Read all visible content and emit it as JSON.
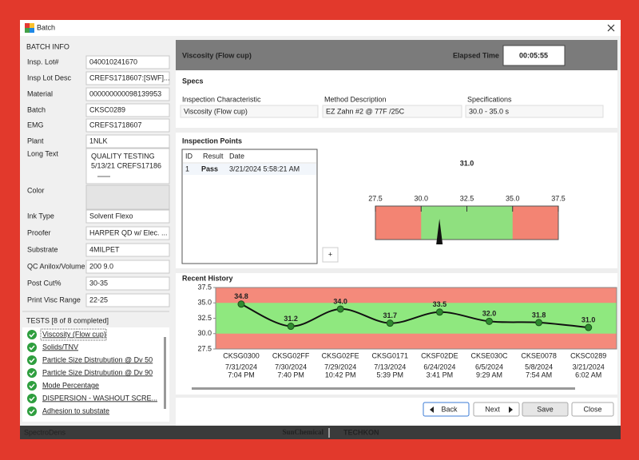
{
  "window": {
    "title": "Batch"
  },
  "batch_info": {
    "heading": "BATCH INFO",
    "fields": [
      {
        "label": "Insp. Lot#",
        "value": "040010241670"
      },
      {
        "label": "Insp Lot Desc",
        "value": "CREFS1718607:[SWF]..."
      },
      {
        "label": "Material",
        "value": "000000000098139953"
      },
      {
        "label": "Batch",
        "value": "CKSC0289"
      },
      {
        "label": "EMG",
        "value": "CREFS1718607"
      },
      {
        "label": "Plant",
        "value": "1NLK"
      },
      {
        "label": "Long Text",
        "value": [
          "QUALITY TESTING",
          "5/13/21 CREFS17186"
        ]
      },
      {
        "label": "Color"
      },
      {
        "label": "Ink Type",
        "value": "Solvent Flexo"
      },
      {
        "label": "Proofer",
        "value": "HARPER QD w/ Elec. ..."
      },
      {
        "label": "Substrate",
        "value": "4MILPET"
      },
      {
        "label": "QC Anilox/Volume",
        "value": "200 9.0"
      },
      {
        "label": "Post Cut%",
        "value": "30-35"
      },
      {
        "label": "Print Visc Range",
        "value": "22-25"
      }
    ]
  },
  "tests": {
    "heading": "TESTS [8 of 8 completed]",
    "items": [
      "Viscosity (Flow cup)",
      "Solids/TNV",
      "Particle Size Distrubution @ Dv 50",
      "Particle Size Distrubution @ Dv 90",
      "Mode Percentage",
      "DISPERSION - WASHOUT SCRE...",
      "Adhesion to substate"
    ]
  },
  "header": {
    "title": "Viscosity (Flow cup)",
    "elapsed_label": "Elapsed Time",
    "elapsed": "00:05:55"
  },
  "specs": {
    "heading": "Specs",
    "columns": [
      "Inspection Characteristic",
      "Method Description",
      "Specifications"
    ],
    "values": [
      "Viscosity (Flow cup)",
      "EZ Zahn #2 @ 77F /25C",
      "30.0 - 35.0 s"
    ]
  },
  "inspection_points": {
    "heading": "Inspection Points",
    "columns": [
      "ID",
      "Result",
      "Date"
    ],
    "rows": [
      [
        "1",
        "Pass",
        "3/21/2024 5:58:21 AM"
      ]
    ],
    "add_button": "+"
  },
  "gauge": {
    "value": 31,
    "value_label": "31.0",
    "range": [
      27.5,
      37.5
    ],
    "ticks": [
      27.5,
      {
        "value": 30,
        "label": "30.0"
      },
      32.5,
      {
        "value": 35,
        "label": "35.0"
      },
      37.5
    ],
    "green_range": [
      30,
      35
    ],
    "colors": {
      "ok": "#8fe07f",
      "bad": "#f38473",
      "value": "#4caf3a"
    }
  },
  "chart_data": {
    "type": "line",
    "title": "Recent History",
    "categories": [
      "CKSG0300",
      "CKSG02FF",
      "CKSG02FE",
      "CKSG0171",
      "CKSF02DE",
      "CKSE030C",
      "CKSE0078",
      "CKSC0289"
    ],
    "dates": [
      "7/31/2024",
      "7/30/2024",
      "7/29/2024",
      "7/13/2024",
      "6/24/2024",
      "6/5/2024",
      "5/8/2024",
      "3/21/2024"
    ],
    "times": [
      "7:04 PM",
      "7:40 PM",
      "10:42 PM",
      "5:39 PM",
      "3:41 PM",
      "9:29 AM",
      "7:54 AM",
      "6:02 AM"
    ],
    "values": [
      34.8,
      31.2,
      34,
      31.7,
      33.5,
      32,
      31.8,
      31
    ],
    "value_labels": [
      "34.8",
      "31.2",
      "34.0",
      "31.7",
      "33.5",
      "32.0",
      "31.8",
      "31.0"
    ],
    "ylim": [
      27.5,
      37.5
    ],
    "yticks": [
      37.5,
      {
        "value": 35,
        "label": "35.0"
      },
      32.5,
      {
        "value": 30,
        "label": "30.0"
      },
      27.5
    ],
    "green_range": [
      30,
      35
    ],
    "color": "#111111",
    "marker_color": "#2e8b2e",
    "band_colors": {
      "ok": "#8fe87f",
      "bad": "#f48a7b"
    }
  },
  "buttons": {
    "back": "Back",
    "next": "Next",
    "save": "Save",
    "close": "Close"
  },
  "footer": {
    "device": "SpectroDens",
    "brand1": "SunChemical",
    "brand2": "TECHKON"
  }
}
